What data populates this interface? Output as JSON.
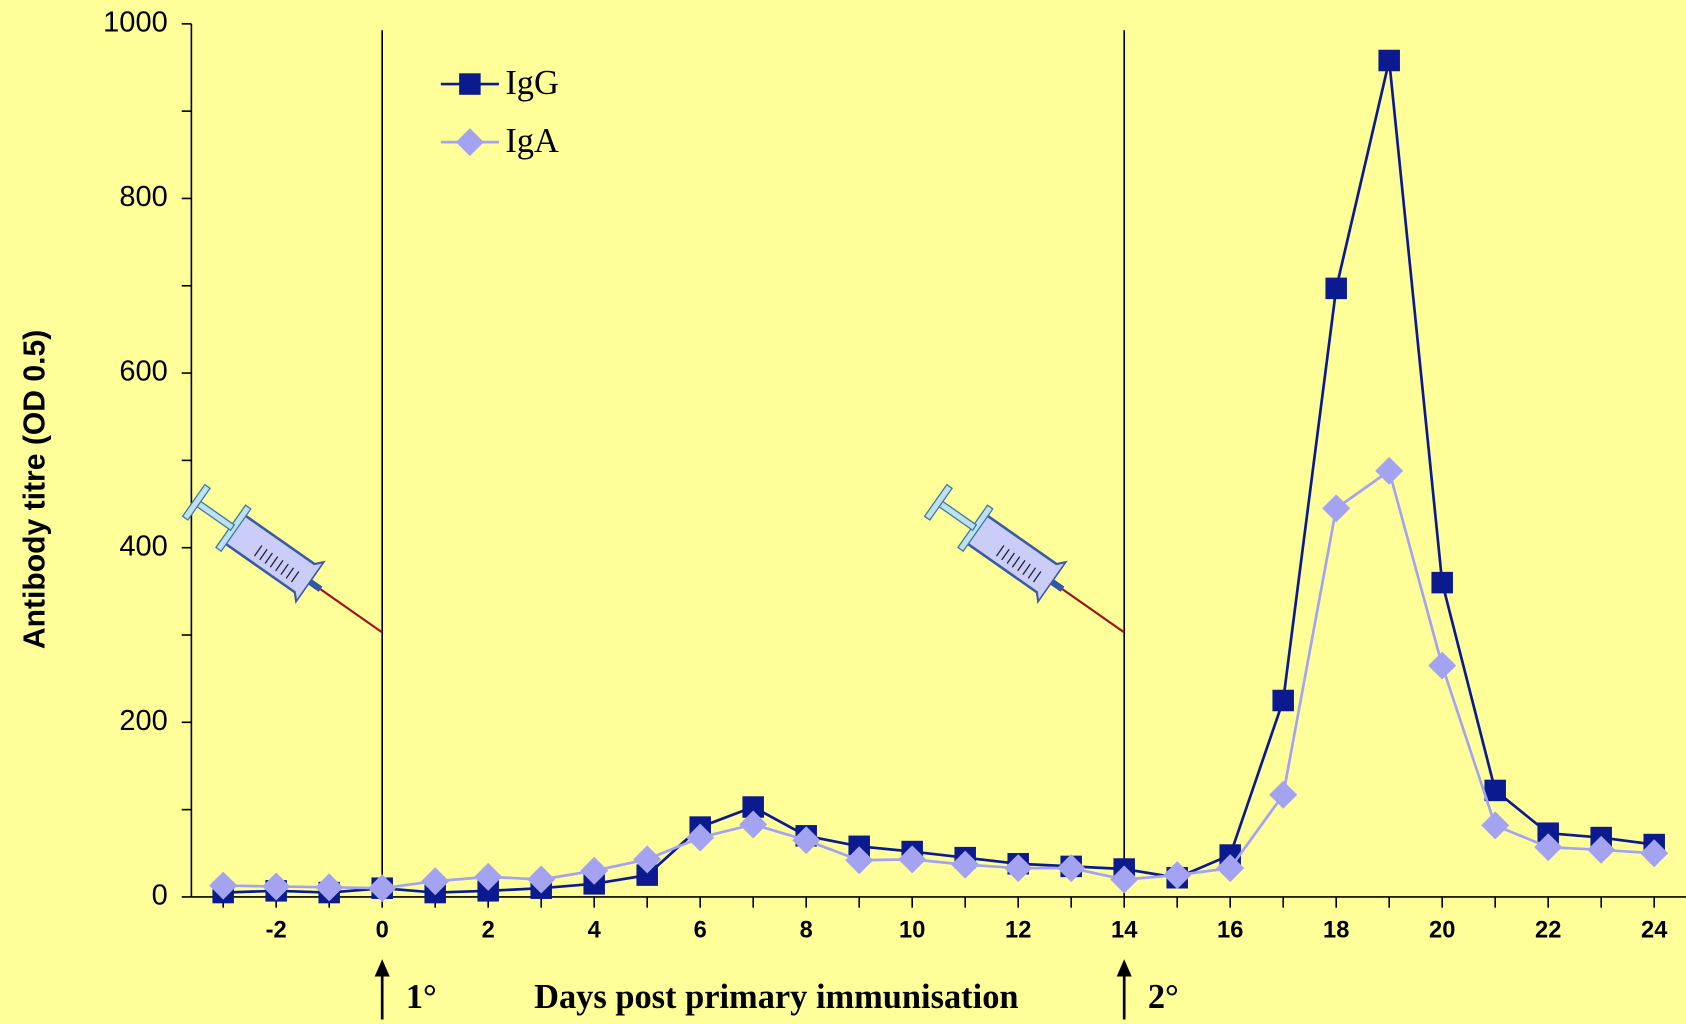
{
  "chart_data": {
    "type": "line",
    "x": [
      -3,
      -2,
      -1,
      0,
      1,
      2,
      3,
      4,
      5,
      6,
      7,
      8,
      9,
      10,
      11,
      12,
      13,
      14,
      15,
      16,
      17,
      18,
      19,
      20,
      21,
      22,
      23,
      24
    ],
    "series": [
      {
        "name": "IgG",
        "color": "#0b1a8f",
        "marker": "square",
        "values": [
          5,
          7,
          5,
          10,
          5,
          7,
          10,
          15,
          25,
          80,
          103,
          70,
          58,
          52,
          45,
          38,
          35,
          32,
          22,
          48,
          225,
          697,
          958,
          360,
          122,
          73,
          68,
          60
        ]
      },
      {
        "name": "IgA",
        "color": "#a3a3f2",
        "marker": "diamond",
        "values": [
          13,
          12,
          11,
          10,
          18,
          23,
          20,
          30,
          43,
          68,
          83,
          65,
          42,
          43,
          37,
          33,
          33,
          20,
          25,
          33,
          117,
          445,
          488,
          265,
          82,
          57,
          54,
          50
        ]
      }
    ],
    "xlabel": "Days post primary immunisation",
    "ylabel": "Antibody titre  (OD 0.5)",
    "xlim": [
      -3.6,
      24.6
    ],
    "ylim": [
      0,
      1000
    ],
    "xticks": [
      -2,
      0,
      2,
      4,
      6,
      8,
      10,
      12,
      14,
      16,
      18,
      20,
      22,
      24
    ],
    "xminor_ticks": [
      -3,
      -1,
      1,
      3,
      5,
      7,
      9,
      11,
      13,
      15,
      17,
      19,
      21,
      23
    ],
    "yticks": [
      0,
      200,
      400,
      600,
      800,
      1000
    ],
    "yminor_ticks": [
      100,
      300,
      500,
      700,
      900
    ],
    "immunisations": [
      {
        "day": 0,
        "label": "1°"
      },
      {
        "day": 14,
        "label": "2°"
      }
    ],
    "legend": "upper left",
    "background": "#ffff99"
  }
}
